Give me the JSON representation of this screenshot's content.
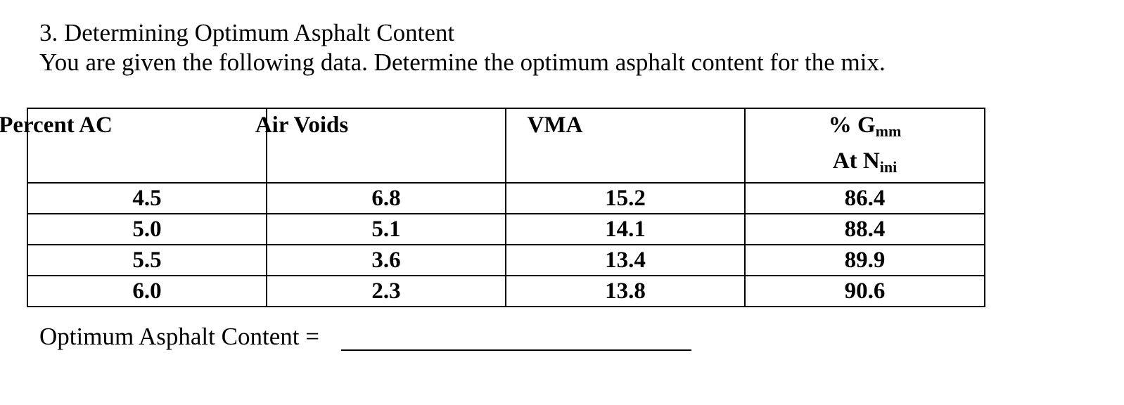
{
  "problem": {
    "title": "3.  Determining Optimum Asphalt Content",
    "instructions": "You are given the following data.  Determine the optimum asphalt content for the mix."
  },
  "table": {
    "headers": {
      "percent_ac": "Percent AC",
      "air_voids": "Air Voids",
      "vma": "VMA",
      "gmm_prefix": "% G",
      "gmm_sub": "mm",
      "nini_prefix": "At N",
      "nini_sub": "ini"
    },
    "rows": [
      {
        "percent_ac": "4.5",
        "air_voids": "6.8",
        "vma": "15.2",
        "gmm": "86.4"
      },
      {
        "percent_ac": "5.0",
        "air_voids": "5.1",
        "vma": "14.1",
        "gmm": "88.4"
      },
      {
        "percent_ac": "5.5",
        "air_voids": "3.6",
        "vma": "13.4",
        "gmm": "89.9"
      },
      {
        "percent_ac": "6.0",
        "air_voids": "2.3",
        "vma": "13.8",
        "gmm": "90.6"
      }
    ]
  },
  "answer": {
    "label": "Optimum Asphalt Content ="
  }
}
